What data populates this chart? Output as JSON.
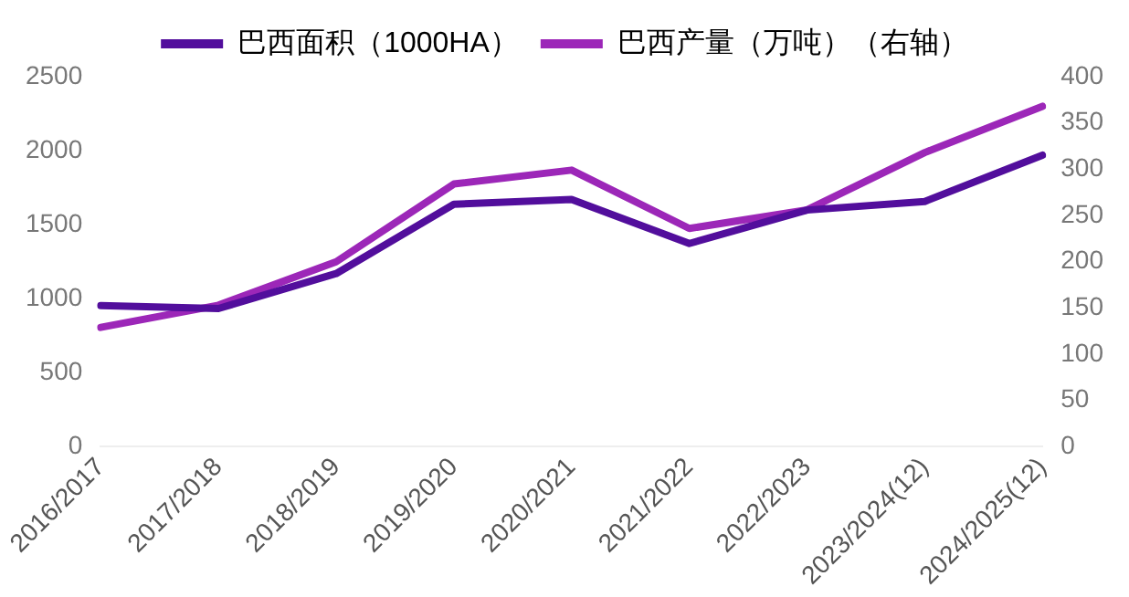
{
  "chart_data": {
    "type": "line",
    "categories": [
      "2016/2017",
      "2017/2018",
      "2018/2019",
      "2019/2020",
      "2020/2021",
      "2021/2022",
      "2022/2023",
      "2023/2024(12)",
      "2024/2025(12)"
    ],
    "series": [
      {
        "name": "巴西面积（1000HA）",
        "color": "#520e9c",
        "values": [
          954,
          934,
          1170,
          1638,
          1671,
          1373,
          1599,
          1657,
          1970
        ]
      },
      {
        "name": "巴西产量（万吨）（右轴）",
        "color": "#9c27b8",
        "axis": "y2",
        "values": [
          129,
          153,
          200,
          284,
          299,
          236,
          256,
          318,
          368
        ]
      }
    ],
    "ylim": [
      0,
      2500
    ],
    "yticks": [
      0,
      500,
      1000,
      1500,
      2000,
      2500
    ],
    "y2lim": [
      0,
      400
    ],
    "y2ticks": [
      0,
      50,
      100,
      150,
      200,
      250,
      300,
      350,
      400
    ],
    "legend": "top",
    "grid": false,
    "marker": "none",
    "line_style": "solid"
  }
}
